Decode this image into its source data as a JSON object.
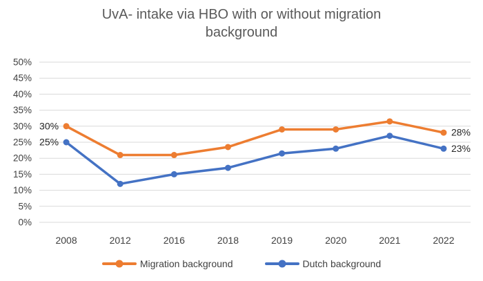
{
  "chart_data": {
    "type": "line",
    "title": "UvA- intake via HBO with or without migration background",
    "categories": [
      "2008",
      "2012",
      "2016",
      "2018",
      "2019",
      "2020",
      "2021",
      "2022"
    ],
    "series": [
      {
        "name": "Migration background",
        "color": "#ED7D31",
        "values": [
          30,
          21,
          21,
          23.5,
          29,
          29,
          31.5,
          28
        ],
        "first_label": "30%",
        "last_label": "28%"
      },
      {
        "name": "Dutch background",
        "color": "#4472C4",
        "values": [
          25,
          12,
          15,
          17,
          21.5,
          23,
          27,
          23
        ],
        "first_label": "25%",
        "last_label": "23%"
      }
    ],
    "y_axis": {
      "min": 0,
      "max": 50,
      "step": 5,
      "suffix": "%"
    },
    "grid": "horizontal-only",
    "legend_position": "bottom",
    "styles": {
      "grid_color": "#D9D9D9",
      "tick_color": "#404040",
      "title_color": "#595959",
      "data_label_color": "#262626"
    }
  }
}
